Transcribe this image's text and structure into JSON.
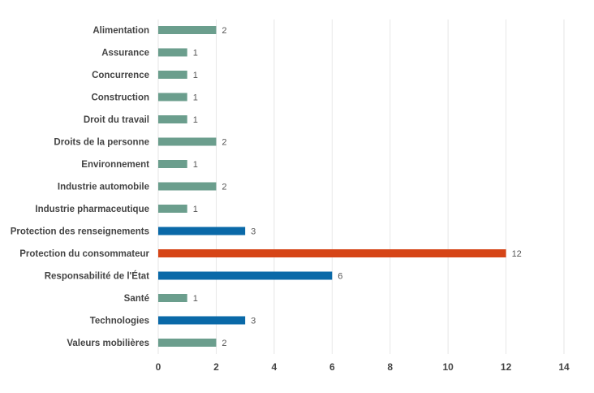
{
  "chart_data": {
    "type": "bar",
    "orientation": "horizontal",
    "title": "",
    "xlabel": "",
    "ylabel": "",
    "categories": [
      "Alimentation",
      "Assurance",
      "Concurrence",
      "Construction",
      "Droit du travail",
      "Droits de la personne",
      "Environnement",
      "Industrie automobile",
      "Industrie pharmaceutique",
      "Protection des renseignements",
      "Protection du consommateur",
      "Responsabilité de l'État",
      "Santé",
      "Technologies",
      "Valeurs mobilières"
    ],
    "values": [
      2,
      1,
      1,
      1,
      1,
      2,
      1,
      2,
      1,
      3,
      12,
      6,
      1,
      3,
      2
    ],
    "bar_groups": [
      "low",
      "low",
      "low",
      "low",
      "low",
      "low",
      "low",
      "low",
      "low",
      "mid",
      "high",
      "mid",
      "low",
      "mid",
      "low"
    ],
    "group_colors": {
      "low": "#6b9e8d",
      "mid": "#0a69a8",
      "high": "#d64517"
    },
    "xlim": [
      0,
      14.5
    ],
    "xticks": [
      0,
      2,
      4,
      6,
      8,
      10,
      12,
      14
    ],
    "grid": true
  }
}
